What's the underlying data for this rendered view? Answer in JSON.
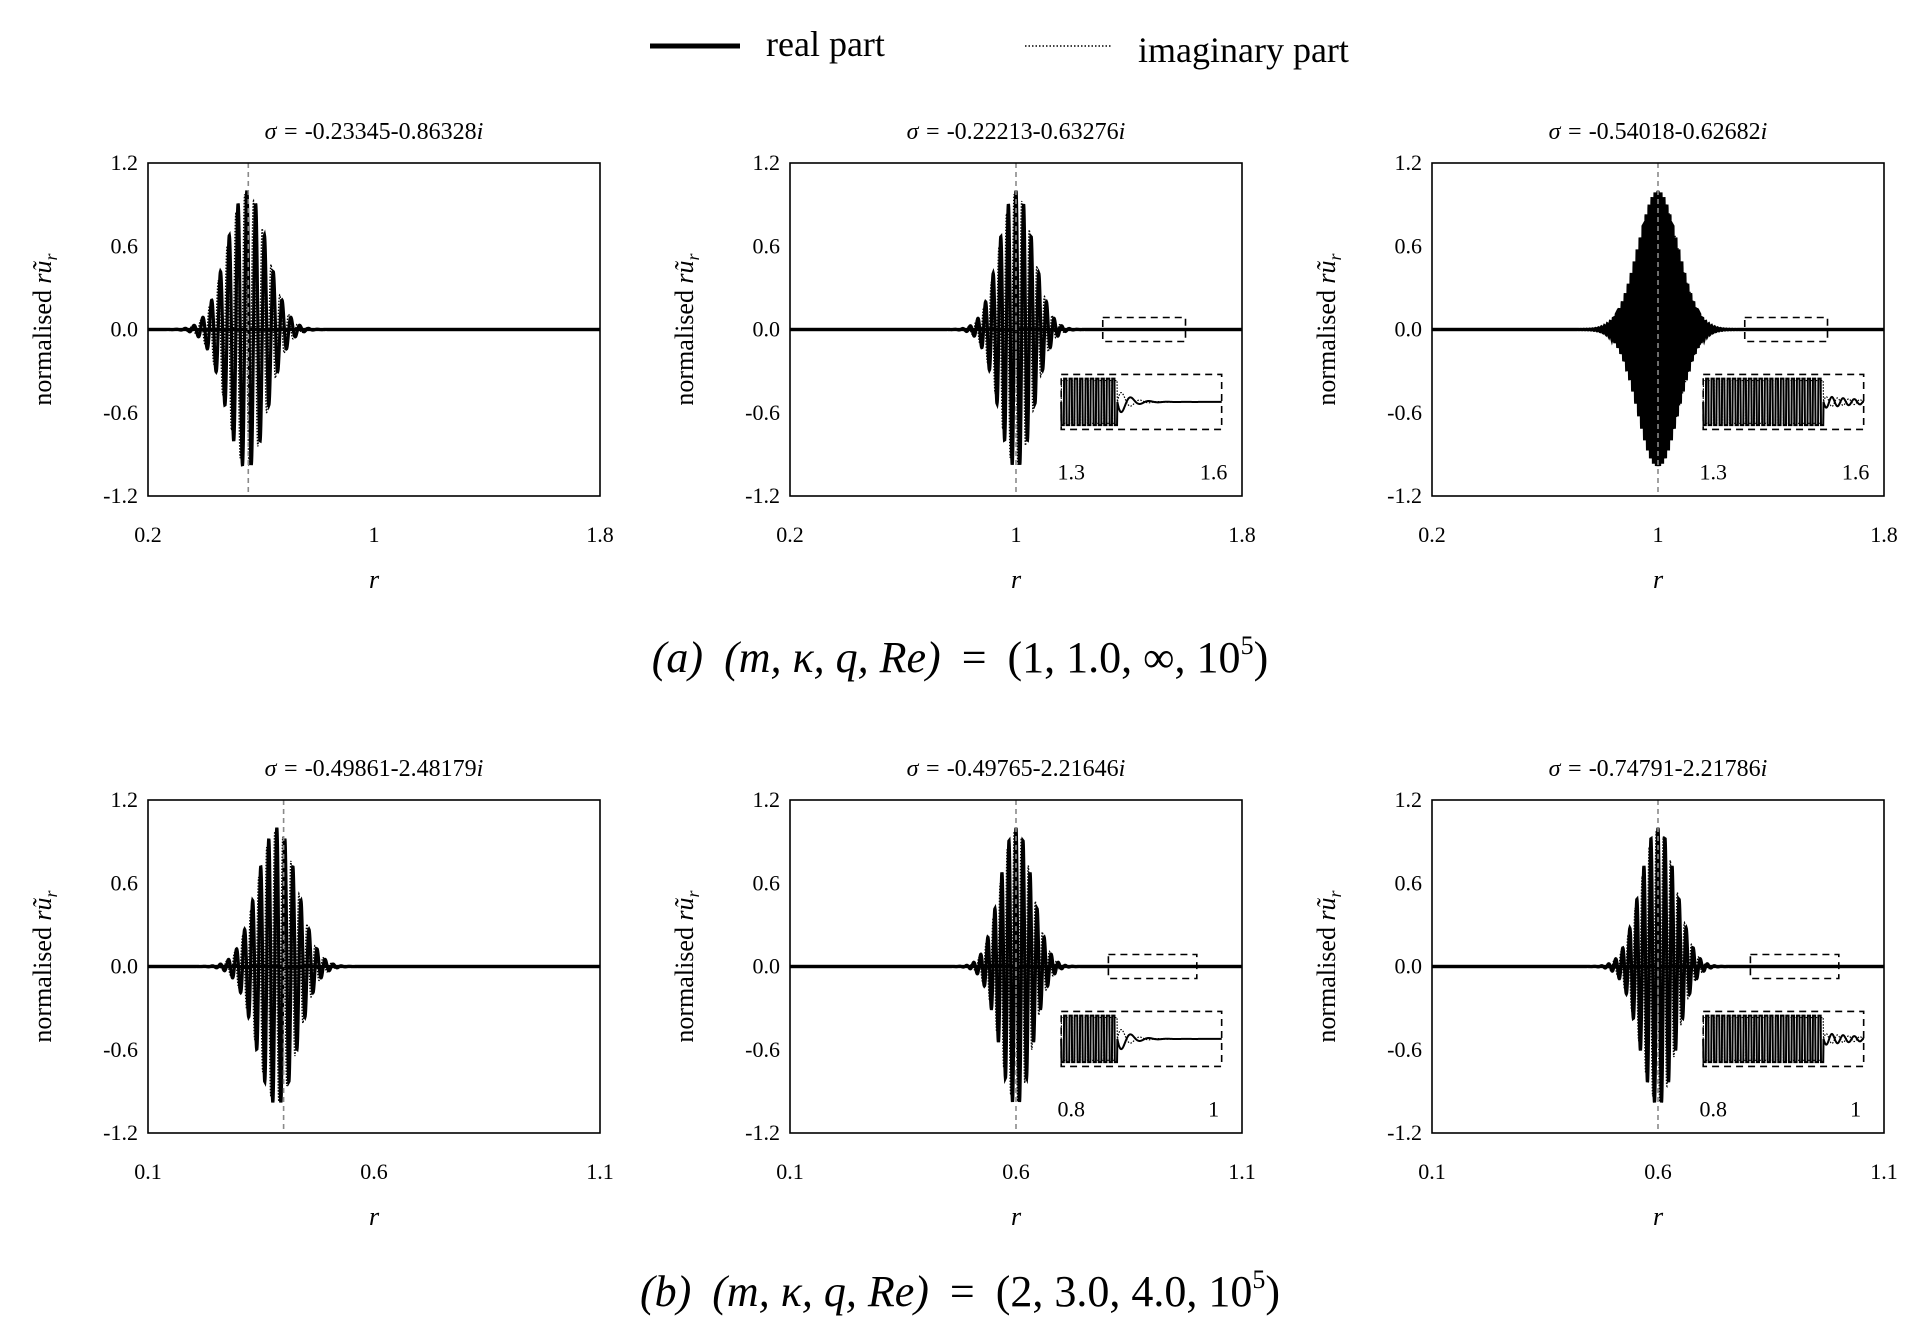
{
  "legend": {
    "items": [
      {
        "label": "real part",
        "style": "solid"
      },
      {
        "label": "imaginary part",
        "style": "dotted"
      }
    ]
  },
  "captions": [
    {
      "tag": "(a)",
      "params": "(m, κ, q, Re)",
      "equals": "=",
      "values": "(1, 1.0, ∞, 10",
      "exp": "5",
      "close": ")"
    },
    {
      "tag": "(b)",
      "params": "(m, κ, q, Re)",
      "equals": "=",
      "values": "(2, 3.0, 4.0, 10",
      "exp": "5",
      "close": ")"
    }
  ],
  "colors": {
    "line": "#000000",
    "center_line": "#8a8a8a",
    "background": "#ffffff"
  },
  "chart_data": [
    {
      "type": "line",
      "row": "a",
      "title_prefix": "σ = ",
      "title_value": "-0.23345-0.86328",
      "title_suffix": "i",
      "xlabel": "r",
      "ylabel": "normalised r",
      "xlim": [
        0.2,
        1.8
      ],
      "ylim": [
        -1.2,
        1.2
      ],
      "xticks": [
        "0.2",
        "1",
        "1.8"
      ],
      "yticks": [
        "1.2",
        "0.6",
        "0.0",
        "-0.6",
        "-1.2"
      ],
      "series": [
        {
          "name": "real part",
          "style": "solid",
          "center": 0.55,
          "width": 0.1,
          "cycles_per_unit": 32,
          "amplitude": 1.0,
          "phase": 0
        },
        {
          "name": "imaginary part",
          "style": "dotted",
          "center": 0.55,
          "width": 0.1,
          "cycles_per_unit": 32,
          "amplitude": 0.98,
          "phase": 1.57
        }
      ],
      "center_line_x": 0.555,
      "inset": null
    },
    {
      "type": "line",
      "row": "a",
      "title_prefix": "σ = ",
      "title_value": "-0.22213-0.63276",
      "title_suffix": "i",
      "xlabel": "r",
      "ylabel": "normalised r",
      "xlim": [
        0.2,
        1.8
      ],
      "ylim": [
        -1.2,
        1.2
      ],
      "xticks": [
        "0.2",
        "1",
        "1.8"
      ],
      "yticks": [
        "1.2",
        "0.6",
        "0.0",
        "-0.6",
        "-1.2"
      ],
      "series": [
        {
          "name": "real part",
          "style": "solid",
          "center": 1.0,
          "width": 0.085,
          "cycles_per_unit": 37,
          "amplitude": 1.0,
          "phase": 0
        },
        {
          "name": "imaginary part",
          "style": "dotted",
          "center": 1.0,
          "width": 0.085,
          "cycles_per_unit": 37,
          "amplitude": 0.98,
          "phase": 1.57
        }
      ],
      "center_line_x": 1.0,
      "inset": {
        "zoom_x": [
          1.3,
          1.6
        ],
        "labels": [
          "1.3",
          "1.6"
        ],
        "pattern": "decay"
      }
    },
    {
      "type": "line",
      "row": "a",
      "title_prefix": "σ = ",
      "title_value": "-0.54018-0.62682",
      "title_suffix": "i",
      "xlabel": "r",
      "ylabel": "normalised r",
      "xlim": [
        0.2,
        1.8
      ],
      "ylim": [
        -1.2,
        1.2
      ],
      "xticks": [
        "0.2",
        "1",
        "1.8"
      ],
      "yticks": [
        "1.2",
        "0.6",
        "0.0",
        "-0.6",
        "-1.2"
      ],
      "series": [
        {
          "name": "real part",
          "style": "solid",
          "center": 1.0,
          "width": 0.1,
          "cycles_per_unit": 95,
          "amplitude": 1.0,
          "phase": 0
        },
        {
          "name": "imaginary part",
          "style": "dotted",
          "center": 1.0,
          "width": 0.1,
          "cycles_per_unit": 95,
          "amplitude": 0.98,
          "phase": 1.57
        }
      ],
      "center_line_x": 1.0,
      "inset": {
        "zoom_x": [
          1.3,
          1.6
        ],
        "labels": [
          "1.3",
          "1.6"
        ],
        "pattern": "wiggle"
      }
    },
    {
      "type": "line",
      "row": "b",
      "title_prefix": "σ = ",
      "title_value": "-0.49861-2.48179",
      "title_suffix": "i",
      "xlabel": "r",
      "ylabel": "normalised r",
      "xlim": [
        0.1,
        1.1
      ],
      "ylim": [
        -1.2,
        1.2
      ],
      "xticks": [
        "0.1",
        "0.6",
        "1.1"
      ],
      "yticks": [
        "1.2",
        "0.6",
        "0.0",
        "-0.6",
        "-1.2"
      ],
      "series": [
        {
          "name": "real part",
          "style": "solid",
          "center": 0.385,
          "width": 0.062,
          "cycles_per_unit": 56,
          "amplitude": 1.0,
          "phase": 0
        },
        {
          "name": "imaginary part",
          "style": "dotted",
          "center": 0.385,
          "width": 0.062,
          "cycles_per_unit": 56,
          "amplitude": 0.98,
          "phase": 1.57
        }
      ],
      "center_line_x": 0.4,
      "inset": null
    },
    {
      "type": "line",
      "row": "b",
      "title_prefix": "σ = ",
      "title_value": "-0.49765-2.21646",
      "title_suffix": "i",
      "xlabel": "r",
      "ylabel": "normalised r",
      "xlim": [
        0.1,
        1.1
      ],
      "ylim": [
        -1.2,
        1.2
      ],
      "xticks": [
        "0.1",
        "0.6",
        "1.1"
      ],
      "yticks": [
        "1.2",
        "0.6",
        "0.0",
        "-0.6",
        "-1.2"
      ],
      "series": [
        {
          "name": "real part",
          "style": "solid",
          "center": 0.6,
          "width": 0.05,
          "cycles_per_unit": 64,
          "amplitude": 1.0,
          "phase": 0
        },
        {
          "name": "imaginary part",
          "style": "dotted",
          "center": 0.6,
          "width": 0.05,
          "cycles_per_unit": 64,
          "amplitude": 0.98,
          "phase": 1.57
        }
      ],
      "center_line_x": 0.6,
      "inset": {
        "zoom_x": [
          0.8,
          1.0
        ],
        "labels": [
          "0.8",
          "1"
        ],
        "pattern": "decay"
      }
    },
    {
      "type": "line",
      "row": "b",
      "title_prefix": "σ = ",
      "title_value": "-0.74791-2.21786",
      "title_suffix": "i",
      "xlabel": "r",
      "ylabel": "normalised r",
      "xlim": [
        0.1,
        1.1
      ],
      "ylim": [
        -1.2,
        1.2
      ],
      "xticks": [
        "0.1",
        "0.6",
        "1.1"
      ],
      "yticks": [
        "1.2",
        "0.6",
        "0.0",
        "-0.6",
        "-1.2"
      ],
      "series": [
        {
          "name": "real part",
          "style": "solid",
          "center": 0.6,
          "width": 0.055,
          "cycles_per_unit": 64,
          "amplitude": 1.0,
          "phase": 0
        },
        {
          "name": "imaginary part",
          "style": "dotted",
          "center": 0.6,
          "width": 0.055,
          "cycles_per_unit": 64,
          "amplitude": 0.98,
          "phase": 1.57
        }
      ],
      "center_line_x": 0.6,
      "inset": {
        "zoom_x": [
          0.8,
          1.0
        ],
        "labels": [
          "0.8",
          "1"
        ],
        "pattern": "wiggle"
      }
    }
  ]
}
